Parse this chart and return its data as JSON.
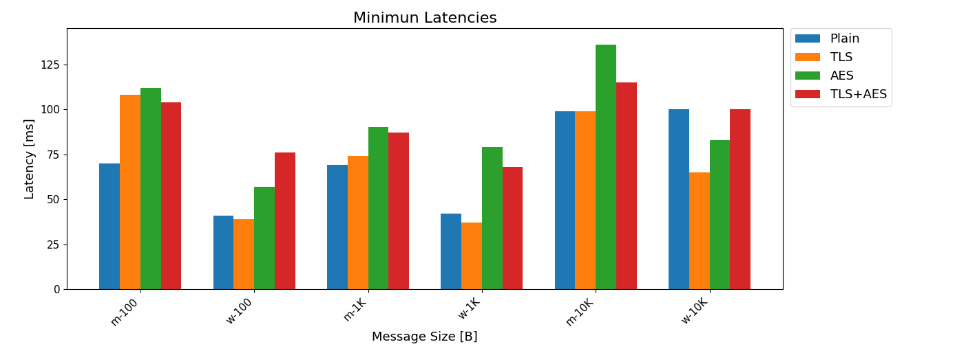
{
  "title": "Minimun Latencies",
  "xlabel": "Message Size [B]",
  "ylabel": "Latency [ms]",
  "categories": [
    "m-100",
    "w-100",
    "m-1K",
    "w-1K",
    "m-10K",
    "w-10K"
  ],
  "series": {
    "Plain": [
      70,
      41,
      69,
      42,
      99,
      100
    ],
    "TLS": [
      108,
      39,
      74,
      37,
      99,
      65
    ],
    "AES": [
      112,
      57,
      90,
      79,
      136,
      83
    ],
    "TLS+AES": [
      104,
      76,
      87,
      68,
      115,
      100
    ]
  },
  "colors": {
    "Plain": "#1f77b4",
    "TLS": "#ff7f0e",
    "AES": "#2ca02c",
    "TLS+AES": "#d62728"
  },
  "ylim": [
    0,
    145
  ],
  "yticks": [
    0,
    25,
    50,
    75,
    100,
    125
  ],
  "figsize": [
    13.87,
    5.14
  ],
  "dpi": 100,
  "bar_width": 0.18,
  "title_fontsize": 16,
  "label_fontsize": 13,
  "tick_fontsize": 11,
  "legend_fontsize": 13
}
